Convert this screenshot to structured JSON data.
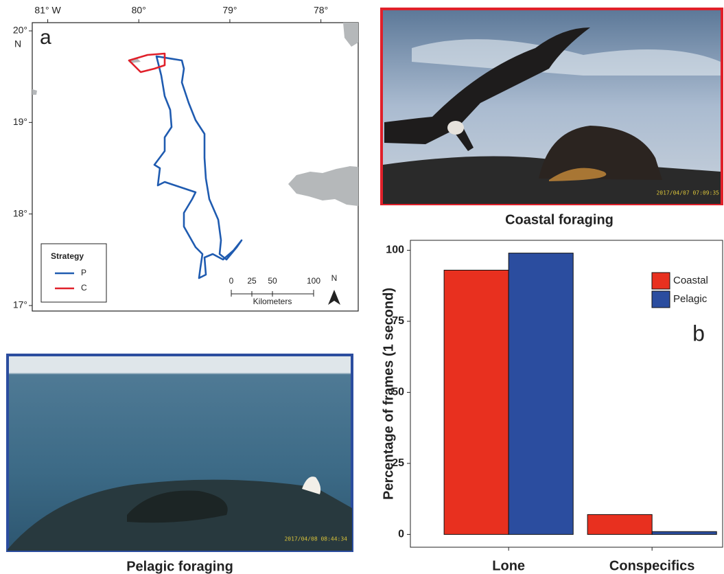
{
  "chart_data": [
    {
      "type": "map",
      "panel_label": "a",
      "xlim": [
        -81.17,
        -77.59
      ],
      "ylim": [
        16.94,
        20.09
      ],
      "xticks": [
        {
          "value": -81,
          "label": "81° W"
        },
        {
          "value": -80,
          "label": "80°"
        },
        {
          "value": -79,
          "label": "79°"
        },
        {
          "value": -78,
          "label": "78°"
        }
      ],
      "yticks": [
        {
          "value": 17,
          "label": "17°"
        },
        {
          "value": 18,
          "label": "18°"
        },
        {
          "value": 19,
          "label": "19°"
        },
        {
          "value": 20,
          "label": "20°"
        }
      ],
      "y_hemisphere": "N",
      "legend": {
        "title": "Strategy",
        "entries": [
          {
            "name": "P",
            "color": "#1f5bb0"
          },
          {
            "name": "C",
            "color": "#e0202a"
          }
        ]
      },
      "scale_bar": {
        "labels": [
          "0",
          "25",
          "50",
          "100"
        ],
        "unit": "Kilometers"
      },
      "north": "N"
    },
    {
      "type": "bar",
      "panel_label": "b",
      "ylabel": "Percentage of frames (1 second)",
      "categories": [
        "Lone",
        "Conspecifics"
      ],
      "series": [
        {
          "name": "Coastal",
          "color": "#e8301f",
          "values": [
            93,
            7
          ]
        },
        {
          "name": "Pelagic",
          "color": "#2b4d9f",
          "values": [
            99,
            1
          ]
        }
      ],
      "ylim": [
        -4.5,
        103.5
      ],
      "yticks": [
        0,
        25,
        50,
        75,
        100
      ],
      "legend": "top-right"
    }
  ],
  "photos": [
    {
      "caption": "Coastal foraging",
      "timestamp": "2017/04/07 07:09:35",
      "border": "#e0202a"
    },
    {
      "caption": "Pelagic foraging",
      "timestamp": "2017/04/08 08:44:34",
      "border": "#2b4d9f"
    }
  ]
}
